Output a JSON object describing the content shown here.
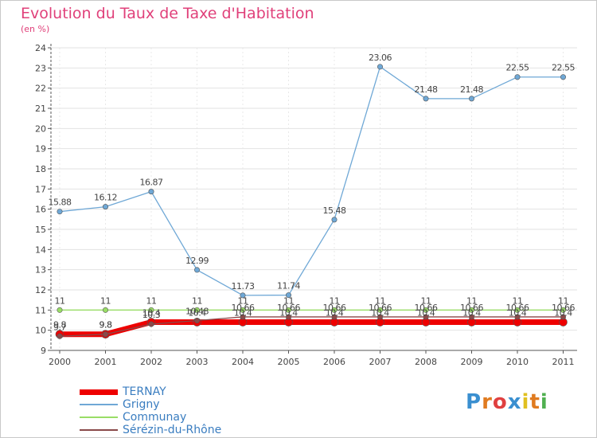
{
  "header": {
    "title": "Evolution du Taux de Taxe d'Habitation",
    "subtitle": "(en %)"
  },
  "chart_data": {
    "type": "line",
    "categories": [
      "2000",
      "2001",
      "2002",
      "2003",
      "2004",
      "2005",
      "2006",
      "2007",
      "2008",
      "2009",
      "2010",
      "2011"
    ],
    "ylim": [
      9,
      24
    ],
    "yticks": [
      9,
      10,
      11,
      12,
      13,
      14,
      15,
      16,
      17,
      18,
      19,
      20,
      21,
      22,
      23,
      24
    ],
    "grid": true,
    "legend_position": "bottom-left",
    "series": [
      {
        "name": "TERNAY",
        "color": "#ee0000",
        "values": [
          9.8,
          9.8,
          10.4,
          10.4,
          10.4,
          10.4,
          10.4,
          10.4,
          10.4,
          10.4,
          10.4,
          10.4
        ],
        "labels": [
          "9.8",
          "9.8",
          "10.4",
          "10.4",
          "10.4",
          "10.4",
          "10.4",
          "10.4",
          "10.4",
          "10.4",
          "10.4",
          "10.4"
        ]
      },
      {
        "name": "Grigny",
        "color": "#6fa8d6",
        "values": [
          15.88,
          16.12,
          16.87,
          12.99,
          11.73,
          11.74,
          15.48,
          23.06,
          21.48,
          21.48,
          22.55,
          22.55
        ],
        "labels": [
          "15.88",
          "16.12",
          "16.87",
          "12.99",
          "11.73",
          "11.74",
          "15.48",
          "23.06",
          "21.48",
          "21.48",
          "22.55",
          "22.55"
        ]
      },
      {
        "name": "Communay",
        "color": "#99dd66",
        "values": [
          11,
          11,
          11,
          11,
          11,
          11,
          11,
          11,
          11,
          11,
          11,
          11
        ],
        "labels": [
          "11",
          "11",
          "11",
          "11",
          "11",
          "11",
          "11",
          "11",
          "11",
          "11",
          "11",
          "11"
        ]
      },
      {
        "name": "Sérézin-du-Rhône",
        "color": "#8a4a4a",
        "values": [
          9.7,
          9.8,
          10.3,
          10.48,
          10.66,
          10.66,
          10.66,
          10.66,
          10.66,
          10.66,
          10.66,
          10.66
        ],
        "labels": [
          "9.7",
          "9.8",
          "10.3",
          "10.48",
          "10.66",
          "10.66",
          "10.66",
          "10.66",
          "10.66",
          "10.66",
          "10.66",
          "10.66"
        ]
      }
    ]
  },
  "logo": {
    "letters": [
      "P",
      "r",
      "o",
      "x",
      "i",
      "t",
      "i"
    ],
    "colors": [
      "#3a8fd0",
      "#e07b20",
      "#e04040",
      "#3a8fd0",
      "#e0c020",
      "#e07b20",
      "#50b050"
    ]
  }
}
